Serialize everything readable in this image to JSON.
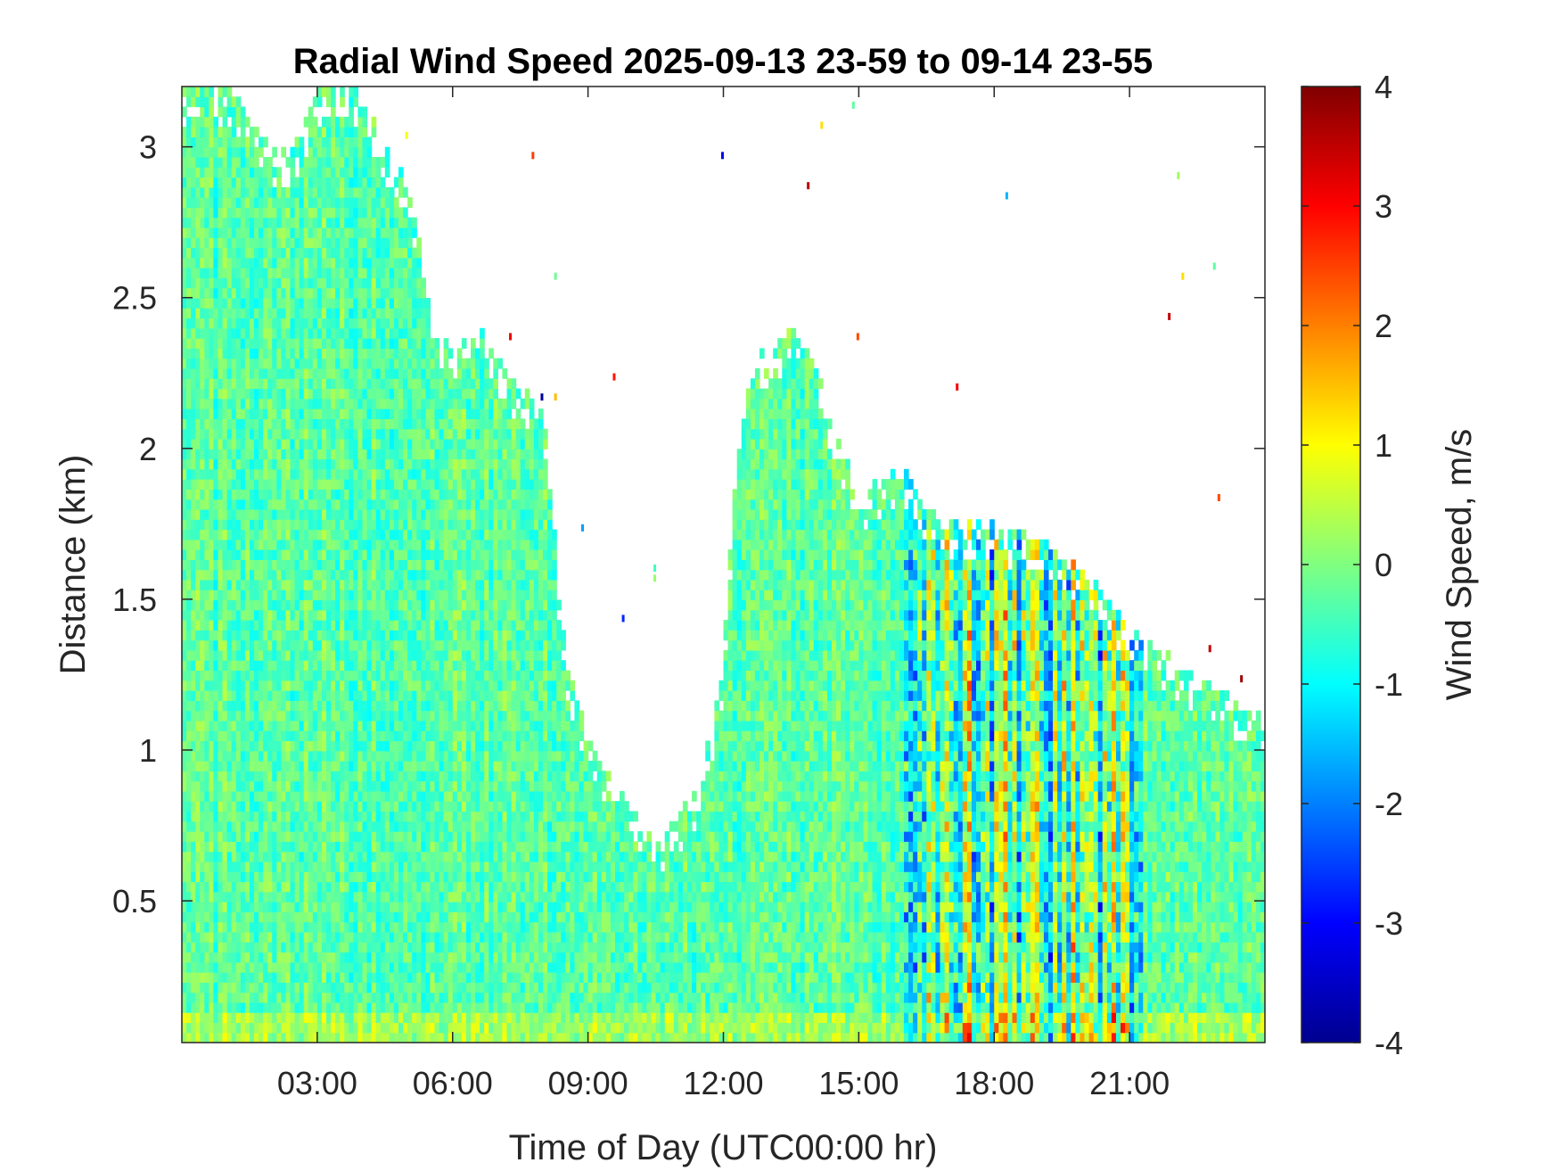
{
  "chart_data": {
    "type": "heatmap",
    "title": "Radial Wind Speed 2025-09-13 23-59 to 09-14 23-55",
    "xlabel": "Time of Day (UTC00:00 hr)",
    "ylabel": "Distance (km)",
    "colorbar_label": "Wind Speed, m/s",
    "xlim": [
      0,
      24
    ],
    "ylim": [
      0.03,
      3.2
    ],
    "clim": [
      -4,
      4
    ],
    "colormap": "jet",
    "x_ticks": [
      {
        "value": 3,
        "label": "03:00"
      },
      {
        "value": 6,
        "label": "06:00"
      },
      {
        "value": 9,
        "label": "09:00"
      },
      {
        "value": 12,
        "label": "12:00"
      },
      {
        "value": 15,
        "label": "15:00"
      },
      {
        "value": 18,
        "label": "18:00"
      },
      {
        "value": 21,
        "label": "21:00"
      }
    ],
    "y_ticks": [
      {
        "value": 0.5,
        "label": "0.5"
      },
      {
        "value": 1,
        "label": "1"
      },
      {
        "value": 1.5,
        "label": "1.5"
      },
      {
        "value": 2,
        "label": "2"
      },
      {
        "value": 2.5,
        "label": "2.5"
      },
      {
        "value": 3,
        "label": "3"
      }
    ],
    "colorbar_ticks": [
      {
        "value": 4,
        "label": "4"
      },
      {
        "value": 3,
        "label": "3"
      },
      {
        "value": 2,
        "label": "2"
      },
      {
        "value": 1,
        "label": "1"
      },
      {
        "value": 0,
        "label": "0"
      },
      {
        "value": -1,
        "label": "-1"
      },
      {
        "value": -2,
        "label": "-2"
      },
      {
        "value": -3,
        "label": "-3"
      },
      {
        "value": -4,
        "label": "-4"
      }
    ],
    "grid": false,
    "data_top_km": [
      {
        "x": 0.0,
        "top": 3.2
      },
      {
        "x": 1.0,
        "top": 3.2
      },
      {
        "x": 2.0,
        "top": 3.0
      },
      {
        "x": 2.5,
        "top": 3.0
      },
      {
        "x": 3.0,
        "top": 3.2
      },
      {
        "x": 4.0,
        "top": 3.2
      },
      {
        "x": 4.5,
        "top": 3.0
      },
      {
        "x": 5.0,
        "top": 2.9
      },
      {
        "x": 5.5,
        "top": 2.5
      },
      {
        "x": 6.0,
        "top": 2.3
      },
      {
        "x": 6.5,
        "top": 2.45
      },
      {
        "x": 7.0,
        "top": 2.3
      },
      {
        "x": 7.5,
        "top": 2.2
      },
      {
        "x": 8.0,
        "top": 2.15
      },
      {
        "x": 8.5,
        "top": 1.3
      },
      {
        "x": 9.0,
        "top": 1.05
      },
      {
        "x": 9.5,
        "top": 0.9
      },
      {
        "x": 10.0,
        "top": 0.8
      },
      {
        "x": 10.5,
        "top": 0.7
      },
      {
        "x": 11.0,
        "top": 0.78
      },
      {
        "x": 11.5,
        "top": 0.9
      },
      {
        "x": 12.0,
        "top": 1.3
      },
      {
        "x": 12.3,
        "top": 2.0
      },
      {
        "x": 12.7,
        "top": 2.3
      },
      {
        "x": 13.5,
        "top": 2.4
      },
      {
        "x": 14.0,
        "top": 2.3
      },
      {
        "x": 14.5,
        "top": 2.05
      },
      {
        "x": 15.0,
        "top": 1.85
      },
      {
        "x": 15.5,
        "top": 1.9
      },
      {
        "x": 16.0,
        "top": 1.95
      },
      {
        "x": 16.5,
        "top": 1.8
      },
      {
        "x": 17.0,
        "top": 1.75
      },
      {
        "x": 18.0,
        "top": 1.75
      },
      {
        "x": 19.0,
        "top": 1.7
      },
      {
        "x": 20.0,
        "top": 1.6
      },
      {
        "x": 21.0,
        "top": 1.4
      },
      {
        "x": 22.0,
        "top": 1.3
      },
      {
        "x": 23.0,
        "top": 1.2
      },
      {
        "x": 24.0,
        "top": 1.1
      }
    ]
  }
}
